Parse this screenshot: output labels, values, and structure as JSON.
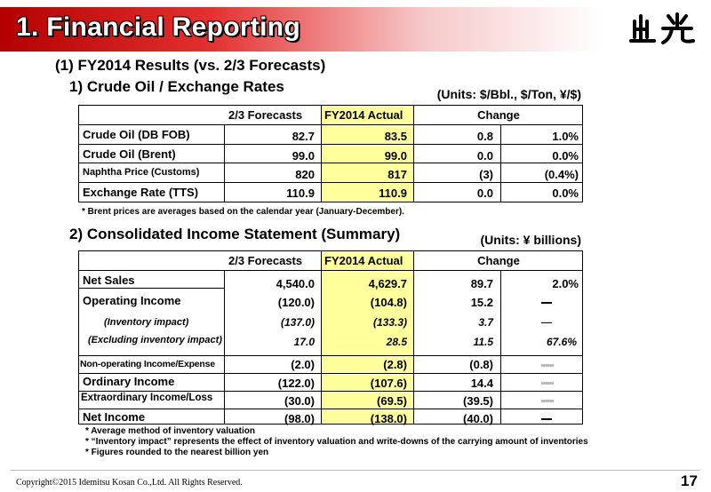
{
  "header": {
    "title": "1. Financial Reporting",
    "logo_text": "出光"
  },
  "section1": {
    "heading": "(1) FY2014 Results (vs. 2/3 Forecasts)"
  },
  "crude": {
    "heading": "1) Crude Oil / Exchange Rates",
    "units": "(Units: $/Bbl., $/Ton, ¥/$)",
    "headers": {
      "forecast": "2/3 Forecasts",
      "actual": "FY2014 Actual",
      "change": "Change"
    },
    "rows": [
      {
        "label": "Crude Oil (DB FOB)",
        "forecast": "82.7",
        "actual": "83.5",
        "change": "0.8",
        "pct": "1.0%"
      },
      {
        "label": "Crude Oil (Brent)",
        "forecast": "99.0",
        "actual": "99.0",
        "change": "0.0",
        "pct": "0.0%"
      },
      {
        "label": "Naphtha Price (Customs)",
        "forecast": "820",
        "actual": "817",
        "change": "(3)",
        "pct": "(0.4%)"
      },
      {
        "label": "Exchange Rate (TTS)",
        "forecast": "110.9",
        "actual": "110.9",
        "change": "0.0",
        "pct": "0.0%"
      }
    ],
    "note": "* Brent prices are averages based on the calendar year (January-December)."
  },
  "income": {
    "heading": "2) Consolidated Income Statement (Summary)",
    "units": "(Units: ¥ billions)",
    "headers": {
      "forecast": "2/3 Forecasts",
      "actual": "FY2014 Actual",
      "change": "Change"
    },
    "rows": [
      {
        "label": "Net Sales",
        "forecast": "4,540.0",
        "actual": "4,629.7",
        "change": "89.7",
        "pct": "2.0%"
      },
      {
        "label": "Operating Income",
        "forecast": "(120.0)",
        "actual": "(104.8)",
        "change": "15.2",
        "pct": ""
      },
      {
        "label": "(Inventory impact)",
        "forecast": "(137.0)",
        "actual": "(133.3)",
        "change": "3.7",
        "pct": ""
      },
      {
        "label": "(Excluding inventory impact)",
        "forecast": "17.0",
        "actual": "28.5",
        "change": "11.5",
        "pct": "67.6%"
      },
      {
        "label": "Non-operating Income/Expense",
        "forecast": "(2.0)",
        "actual": "(2.8)",
        "change": "(0.8)",
        "pct": ""
      },
      {
        "label": "Ordinary Income",
        "forecast": "(122.0)",
        "actual": "(107.6)",
        "change": "14.4",
        "pct": ""
      },
      {
        "label": "Extraordinary Income/Loss",
        "forecast": "(30.0)",
        "actual": "(69.5)",
        "change": "(39.5)",
        "pct": ""
      },
      {
        "label": "Net Income",
        "forecast": "(98.0)",
        "actual": "(138.0)",
        "change": "(40.0)",
        "pct": ""
      }
    ],
    "notes": [
      "* Average method of inventory valuation",
      "* “Inventory impact” represents the effect of inventory valuation and write-downs of the carrying  amount of inventories",
      "* Figures rounded to the nearest billion yen"
    ]
  },
  "footer": {
    "copyright": "Copyright©2015 Idemitsu Kosan Co.,Ltd. All Rights Reserved.",
    "page": "17"
  },
  "colors": {
    "title_red": "#c00000",
    "highlight": "#ffff9c"
  }
}
